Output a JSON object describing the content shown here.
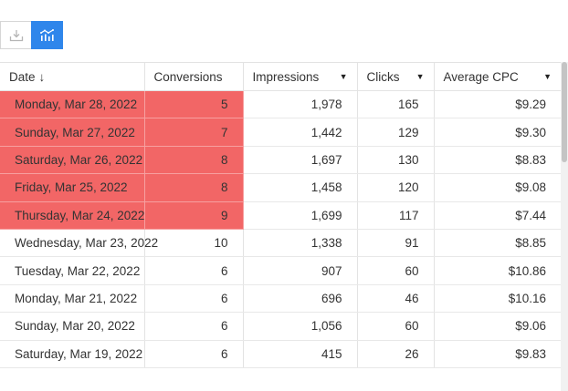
{
  "toolbar": {
    "download_icon": "download-icon",
    "chart_icon": "chart-icon",
    "accent": "#2f86eb"
  },
  "table": {
    "columns": [
      {
        "label": "Date",
        "sort": "↓"
      },
      {
        "label": "Conversions"
      },
      {
        "label": "Impressions",
        "dropdown": "▼"
      },
      {
        "label": "Clicks",
        "dropdown": "▼"
      },
      {
        "label": "Average CPC",
        "dropdown": "▼"
      }
    ],
    "highlight_color": "#f26666",
    "rows": [
      {
        "date": "Monday, Mar 28, 2022",
        "conversions": "5",
        "impressions": "1,978",
        "clicks": "165",
        "cpc": "$9.29",
        "highlighted": true
      },
      {
        "date": "Sunday, Mar 27, 2022",
        "conversions": "7",
        "impressions": "1,442",
        "clicks": "129",
        "cpc": "$9.30",
        "highlighted": true
      },
      {
        "date": "Saturday, Mar 26, 2022",
        "conversions": "8",
        "impressions": "1,697",
        "clicks": "130",
        "cpc": "$8.83",
        "highlighted": true
      },
      {
        "date": "Friday, Mar 25, 2022",
        "conversions": "8",
        "impressions": "1,458",
        "clicks": "120",
        "cpc": "$9.08",
        "highlighted": true
      },
      {
        "date": "Thursday, Mar 24, 2022",
        "conversions": "9",
        "impressions": "1,699",
        "clicks": "117",
        "cpc": "$7.44",
        "highlighted": true
      },
      {
        "date": "Wednesday, Mar 23, 2022",
        "conversions": "10",
        "impressions": "1,338",
        "clicks": "91",
        "cpc": "$8.85",
        "highlighted": false
      },
      {
        "date": "Tuesday, Mar 22, 2022",
        "conversions": "6",
        "impressions": "907",
        "clicks": "60",
        "cpc": "$10.86",
        "highlighted": false
      },
      {
        "date": "Monday, Mar 21, 2022",
        "conversions": "6",
        "impressions": "696",
        "clicks": "46",
        "cpc": "$10.16",
        "highlighted": false
      },
      {
        "date": "Sunday, Mar 20, 2022",
        "conversions": "6",
        "impressions": "1,056",
        "clicks": "60",
        "cpc": "$9.06",
        "highlighted": false
      },
      {
        "date": "Saturday, Mar 19, 2022",
        "conversions": "6",
        "impressions": "415",
        "clicks": "26",
        "cpc": "$9.83",
        "highlighted": false
      }
    ]
  }
}
